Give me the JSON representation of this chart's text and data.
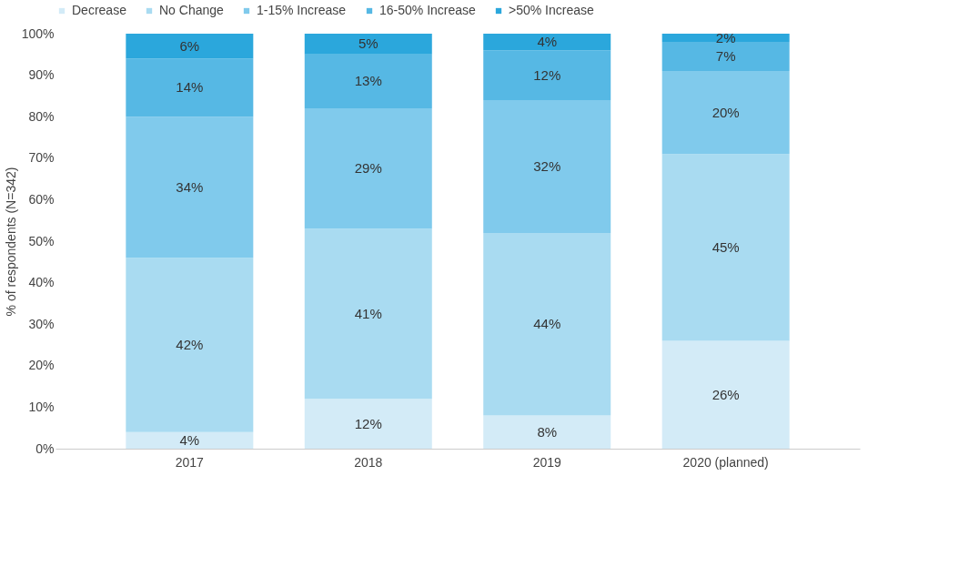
{
  "chart_data": {
    "type": "bar",
    "stacked": true,
    "ylabel": "% of respondents (N=342)",
    "categories": [
      "2017",
      "2018",
      "2019",
      "2020 (planned)"
    ],
    "series": [
      {
        "name": "Decrease",
        "color": "#d3ebf7",
        "values": [
          4,
          12,
          8,
          26
        ]
      },
      {
        "name": "No Change",
        "color": "#a9dbf1",
        "values": [
          42,
          41,
          44,
          45
        ]
      },
      {
        "name": "1-15% Increase",
        "color": "#80caec",
        "values": [
          34,
          29,
          32,
          20
        ]
      },
      {
        "name": "16-50% Increase",
        "color": "#56b8e4",
        "values": [
          14,
          13,
          12,
          7
        ]
      },
      {
        "name": ">50% Increase",
        "color": "#2ba7dc",
        "values": [
          6,
          5,
          4,
          2
        ]
      }
    ],
    "ylim": [
      0,
      100
    ],
    "yticks": [
      {
        "value": 0,
        "label": "0%"
      },
      {
        "value": 10,
        "label": "10%"
      },
      {
        "value": 20,
        "label": "20%"
      },
      {
        "value": 30,
        "label": "30%"
      },
      {
        "value": 40,
        "label": "40%"
      },
      {
        "value": 50,
        "label": "50%"
      },
      {
        "value": 60,
        "label": "60%"
      },
      {
        "value": 70,
        "label": "70%"
      },
      {
        "value": 80,
        "label": "80%"
      },
      {
        "value": 90,
        "label": "90%"
      },
      {
        "value": 100,
        "label": "100%"
      }
    ],
    "value_labels": [
      [
        "4%",
        "12%",
        "8%",
        "26%"
      ],
      [
        "42%",
        "41%",
        "44%",
        "45%"
      ],
      [
        "34%",
        "29%",
        "32%",
        "20%"
      ],
      [
        "14%",
        "13%",
        "12%",
        "7%"
      ],
      [
        "6%",
        "5%",
        "4%",
        "2%"
      ]
    ],
    "legend": "top",
    "grid": false
  }
}
